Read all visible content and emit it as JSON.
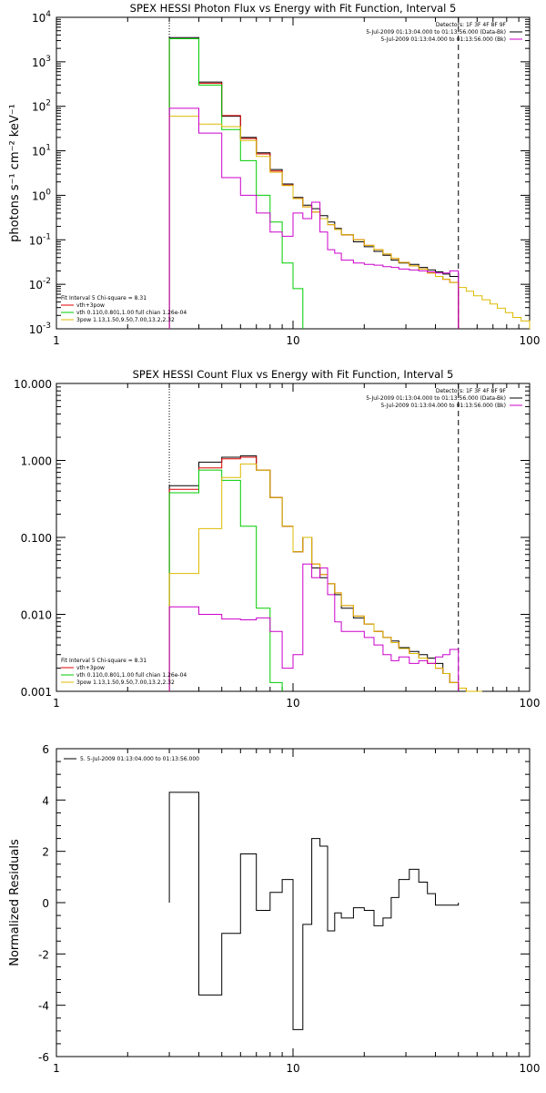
{
  "chart_data": [
    {
      "type": "line",
      "title": "SPEX HESSI Photon Flux vs Energy with Fit Function, Interval 5",
      "ylabel": "photons s⁻¹ cm⁻² keV⁻¹",
      "xscale": "log",
      "yscale": "log",
      "xlim": [
        1,
        100
      ],
      "ylim": [
        0.001,
        10000
      ],
      "xticks": [
        "1",
        "10",
        "100"
      ],
      "yticks": [
        {
          "base": "10",
          "exp": "-3"
        },
        {
          "base": "10",
          "exp": "-2"
        },
        {
          "base": "10",
          "exp": "-1"
        },
        {
          "base": "10",
          "exp": "0"
        },
        {
          "base": "10",
          "exp": "1"
        },
        {
          "base": "10",
          "exp": "2"
        },
        {
          "base": "10",
          "exp": "3"
        },
        {
          "base": "10",
          "exp": "4"
        }
      ],
      "vlines": [
        {
          "x": 3,
          "style": "dotted"
        },
        {
          "x": 50,
          "style": "dashed"
        }
      ],
      "legend_top_right": [
        {
          "text": "Detectors: 1F 3F 4F 8F 9F",
          "color": ""
        },
        {
          "text": "5-Jul-2009 01:13:04.000 to 01:13:56.000 (Data-Bk)",
          "color": "#000000"
        },
        {
          "text": "5-Jul-2009 01:13:04.000 to 01:13:56.000 (Bk)",
          "color": "#cc00cc"
        }
      ],
      "legend_bottom_left": [
        {
          "text": "Fit Interval 5   Chi-square = 8.31",
          "color": ""
        },
        {
          "text": "vth+3pow",
          "color": "#dd0000"
        },
        {
          "text": "vth 0.110,0.801,1.00  full chian 1.26e-04",
          "color": "#00cc00"
        },
        {
          "text": "3pow 1.13,1.50,9.50,7.00,13.2,2.32",
          "color": "#ddbb00"
        }
      ],
      "x_edges": [
        3,
        4,
        5,
        6,
        7,
        8,
        9,
        10,
        11,
        12,
        13,
        14,
        15,
        16,
        18,
        20,
        22,
        24,
        26,
        28,
        31,
        34,
        37,
        40,
        43,
        46,
        50,
        54,
        58,
        63,
        68,
        73,
        79,
        85,
        92,
        100
      ],
      "series": [
        {
          "name": "Data-Bk",
          "color": "#000000",
          "values": [
            3500,
            350,
            60,
            20,
            9,
            3.8,
            1.8,
            0.9,
            0.6,
            0.5,
            0.35,
            0.25,
            0.18,
            0.13,
            0.09,
            0.07,
            0.055,
            0.045,
            0.035,
            0.03,
            0.028,
            0.024,
            0.021,
            0.019,
            0.017,
            0.015,
            0.0,
            null,
            null,
            null,
            null,
            null,
            null,
            null,
            null
          ]
        },
        {
          "name": "vth+3pow",
          "color": "#dd0000",
          "values": [
            3300,
            330,
            62,
            19,
            8.5,
            3.5,
            1.7,
            0.85,
            0.55,
            0.42,
            0.3,
            0.22,
            0.17,
            0.13,
            0.1,
            0.075,
            0.06,
            0.048,
            0.038,
            0.031,
            0.026,
            0.022,
            0.018,
            0.015,
            0.013,
            0.011,
            null,
            null,
            null,
            null,
            null,
            null,
            null,
            null,
            null
          ]
        },
        {
          "name": "vth",
          "color": "#00cc00",
          "values": [
            3300,
            300,
            30,
            6,
            1.0,
            0.25,
            0.03,
            0.008,
            null,
            null,
            null,
            null,
            null,
            null,
            null,
            null,
            null,
            null,
            null,
            null,
            null,
            null,
            null,
            null,
            null,
            null,
            null,
            null,
            null,
            null,
            null,
            null,
            null,
            null,
            null
          ]
        },
        {
          "name": "3pow",
          "color": "#ddbb00",
          "values": [
            60,
            40,
            35,
            17,
            7.5,
            3.3,
            1.65,
            0.84,
            0.55,
            0.42,
            0.3,
            0.22,
            0.17,
            0.13,
            0.1,
            0.075,
            0.06,
            0.048,
            0.038,
            0.031,
            0.026,
            0.022,
            0.018,
            0.015,
            0.013,
            0.011,
            0.0085,
            0.007,
            0.0055,
            0.0045,
            0.0036,
            0.0029,
            0.0023,
            0.0018,
            0.0015
          ]
        },
        {
          "name": "Bk",
          "color": "#cc00cc",
          "values": [
            90,
            25,
            2.5,
            1.0,
            0.4,
            0.15,
            0.12,
            0.4,
            0.3,
            0.7,
            0.15,
            0.06,
            0.05,
            0.035,
            0.03,
            0.028,
            0.027,
            0.025,
            0.024,
            0.022,
            0.021,
            0.02,
            0.019,
            0.018,
            0.018,
            0.02,
            null,
            null,
            null,
            null,
            null,
            null,
            null,
            null,
            null
          ]
        }
      ]
    },
    {
      "type": "line",
      "title": "SPEX HESSI Count Flux vs Energy with Fit Function, Interval 5",
      "xscale": "log",
      "yscale": "log",
      "xlim": [
        1,
        100
      ],
      "ylim": [
        0.001,
        10
      ],
      "xticks": [
        "1",
        "10",
        "100"
      ],
      "yticks": [
        "0.001",
        "0.010",
        "0.100",
        "1.000",
        "10.000"
      ],
      "vlines": [
        {
          "x": 3,
          "style": "dotted"
        },
        {
          "x": 50,
          "style": "dashed"
        }
      ],
      "legend_top_right": [
        {
          "text": "Detectors: 1F 3F 4F 8F 9F",
          "color": ""
        },
        {
          "text": "5-Jul-2009 01:13:04.000 to 01:13:56.000 (Data-Bk)",
          "color": "#000000"
        },
        {
          "text": "5-Jul-2009 01:13:04.000 to 01:13:56.000 (Bk)",
          "color": "#cc00cc"
        }
      ],
      "legend_bottom_left": [
        {
          "text": "Fit Interval 5   Chi-square = 8.31",
          "color": ""
        },
        {
          "text": "vth+3pow",
          "color": "#dd0000"
        },
        {
          "text": "vth 0.110,0.801,1.00  full chian 1.26e-04",
          "color": "#00cc00"
        },
        {
          "text": "3pow 1.13,1.50,9.50,7.00,13.2,2.32",
          "color": "#ddbb00"
        }
      ],
      "x_edges": [
        3,
        4,
        5,
        6,
        7,
        8,
        9,
        10,
        11,
        12,
        13,
        14,
        15,
        16,
        18,
        20,
        22,
        24,
        26,
        28,
        31,
        34,
        37,
        40,
        43,
        46,
        50,
        54,
        58,
        63
      ],
      "series": [
        {
          "name": "Data-Bk",
          "color": "#000000",
          "values": [
            0.47,
            0.95,
            1.1,
            1.15,
            0.75,
            0.33,
            0.14,
            0.065,
            0.1,
            0.04,
            0.03,
            0.025,
            0.018,
            0.012,
            0.009,
            0.0075,
            0.006,
            0.005,
            0.0045,
            0.0037,
            0.0033,
            0.003,
            0.0027,
            0.0023,
            0.0017,
            0.0013,
            null,
            null,
            null
          ]
        },
        {
          "name": "vth+3pow",
          "color": "#dd0000",
          "values": [
            0.42,
            0.8,
            1.05,
            1.1,
            0.75,
            0.33,
            0.14,
            0.065,
            0.1,
            0.045,
            0.033,
            0.025,
            0.019,
            0.013,
            0.0095,
            0.0075,
            0.006,
            0.005,
            0.0043,
            0.0036,
            0.0031,
            0.0027,
            0.0023,
            0.002,
            0.0017,
            0.0013,
            0.0011,
            null,
            null
          ]
        },
        {
          "name": "vth",
          "color": "#00cc00",
          "values": [
            0.38,
            0.75,
            0.55,
            0.14,
            0.012,
            0.0013,
            null,
            null,
            null,
            null,
            null,
            null,
            null,
            null,
            null,
            null,
            null,
            null,
            null,
            null,
            null,
            null,
            null,
            null,
            null,
            null,
            null,
            null,
            null
          ]
        },
        {
          "name": "3pow",
          "color": "#ddbb00",
          "values": [
            0.034,
            0.13,
            0.6,
            0.9,
            0.75,
            0.33,
            0.14,
            0.065,
            0.1,
            0.045,
            0.033,
            0.025,
            0.019,
            0.013,
            0.0095,
            0.0075,
            0.006,
            0.005,
            0.0043,
            0.0036,
            0.0031,
            0.0027,
            0.0023,
            0.002,
            0.0017,
            0.0013,
            0.0011,
            0.0009,
            0.0007
          ]
        },
        {
          "name": "Bk",
          "color": "#cc00cc",
          "values": [
            0.0125,
            0.01,
            0.0087,
            0.0085,
            0.009,
            0.006,
            0.002,
            0.003,
            0.045,
            0.03,
            0.04,
            0.018,
            0.008,
            0.006,
            0.006,
            0.005,
            0.004,
            0.003,
            0.0025,
            0.0028,
            0.0023,
            0.0025,
            0.0023,
            0.0028,
            0.003,
            0.0035,
            null,
            null,
            null
          ]
        }
      ]
    },
    {
      "type": "line",
      "ylabel": "Normalized Residuals",
      "xscale": "log",
      "yscale": "linear",
      "xlim": [
        1,
        100
      ],
      "ylim": [
        -6,
        6
      ],
      "xticks": [
        "1",
        "10",
        "100"
      ],
      "yticks": [
        "-6",
        "-4",
        "-2",
        "0",
        "2",
        "4",
        "6"
      ],
      "legend_top_left": [
        {
          "text": "5. 5-Jul-2009 01:13:04.000 to 01:13:56.000",
          "color": "#000000"
        }
      ],
      "x_edges": [
        3,
        4,
        5,
        6,
        7,
        8,
        9,
        10,
        11,
        12,
        13,
        14,
        15,
        16,
        18,
        20,
        22,
        24,
        26,
        28,
        31,
        34,
        37,
        40,
        43,
        46,
        50
      ],
      "series": [
        {
          "name": "5. 5-Jul-2009 01:13:04.000 to 01:13:56.000",
          "color": "#000000",
          "values": [
            4.3,
            -3.6,
            -1.2,
            1.9,
            -0.3,
            0.4,
            0.9,
            -4.95,
            -0.85,
            2.5,
            2.2,
            -1.1,
            -0.4,
            -0.6,
            -0.2,
            -0.3,
            -0.9,
            -0.6,
            0.2,
            0.9,
            1.3,
            0.8,
            0.35,
            -0.1,
            -0.1,
            -0.1
          ]
        }
      ]
    }
  ]
}
